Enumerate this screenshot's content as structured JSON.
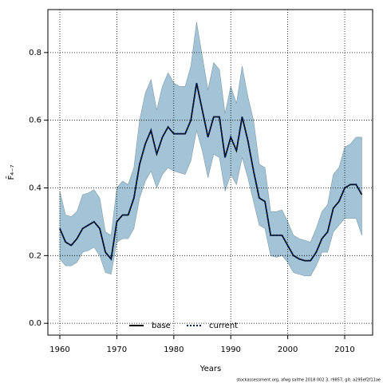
{
  "chart_data": {
    "type": "line",
    "xlabel": "Years",
    "ylabel": "F̄₄₋₇",
    "footnote": "stockassessment.org, afwg saithe 2018 002 3, r9857, git: a295ef2f11ae",
    "x": [
      1960,
      1961,
      1962,
      1963,
      1964,
      1965,
      1966,
      1967,
      1968,
      1969,
      1970,
      1971,
      1972,
      1973,
      1974,
      1975,
      1976,
      1977,
      1978,
      1979,
      1980,
      1981,
      1982,
      1983,
      1984,
      1985,
      1986,
      1987,
      1988,
      1989,
      1990,
      1991,
      1992,
      1993,
      1994,
      1995,
      1996,
      1997,
      1998,
      1999,
      2000,
      2001,
      2002,
      2003,
      2004,
      2005,
      2006,
      2007,
      2008,
      2009,
      2010,
      2011,
      2012,
      2013
    ],
    "band": {
      "color": "#a3c4d6",
      "upper": [
        0.39,
        0.32,
        0.315,
        0.33,
        0.38,
        0.385,
        0.395,
        0.37,
        0.27,
        0.26,
        0.4,
        0.42,
        0.41,
        0.46,
        0.6,
        0.68,
        0.72,
        0.63,
        0.7,
        0.74,
        0.71,
        0.7,
        0.7,
        0.76,
        0.89,
        0.79,
        0.69,
        0.77,
        0.75,
        0.62,
        0.7,
        0.65,
        0.76,
        0.67,
        0.6,
        0.47,
        0.46,
        0.33,
        0.33,
        0.335,
        0.3,
        0.26,
        0.25,
        0.245,
        0.24,
        0.28,
        0.33,
        0.35,
        0.44,
        0.46,
        0.52,
        0.53,
        0.55,
        0.55
      ],
      "lower": [
        0.19,
        0.17,
        0.17,
        0.18,
        0.21,
        0.215,
        0.225,
        0.2,
        0.15,
        0.145,
        0.24,
        0.25,
        0.25,
        0.28,
        0.37,
        0.42,
        0.45,
        0.4,
        0.44,
        0.46,
        0.45,
        0.445,
        0.44,
        0.48,
        0.57,
        0.51,
        0.43,
        0.5,
        0.49,
        0.39,
        0.44,
        0.41,
        0.49,
        0.43,
        0.36,
        0.29,
        0.28,
        0.2,
        0.195,
        0.2,
        0.18,
        0.15,
        0.145,
        0.14,
        0.14,
        0.17,
        0.21,
        0.21,
        0.27,
        0.29,
        0.31,
        0.31,
        0.31,
        0.26
      ]
    },
    "series": [
      {
        "name": "base",
        "color": "#000000",
        "dash": false,
        "values": [
          0.28,
          0.24,
          0.23,
          0.25,
          0.28,
          0.29,
          0.3,
          0.28,
          0.21,
          0.19,
          0.3,
          0.32,
          0.32,
          0.37,
          0.47,
          0.53,
          0.57,
          0.5,
          0.55,
          0.58,
          0.56,
          0.56,
          0.56,
          0.6,
          0.71,
          0.63,
          0.55,
          0.61,
          0.61,
          0.49,
          0.55,
          0.51,
          0.61,
          0.54,
          0.45,
          0.37,
          0.36,
          0.26,
          0.26,
          0.26,
          0.23,
          0.2,
          0.19,
          0.185,
          0.185,
          0.21,
          0.25,
          0.27,
          0.34,
          0.36,
          0.4,
          0.41,
          0.41,
          0.38
        ]
      },
      {
        "name": "current",
        "color": "#00205b",
        "dash": true,
        "values": [
          0.28,
          0.24,
          0.23,
          0.25,
          0.28,
          0.29,
          0.3,
          0.28,
          0.21,
          0.19,
          0.3,
          0.32,
          0.32,
          0.37,
          0.47,
          0.53,
          0.57,
          0.5,
          0.55,
          0.58,
          0.56,
          0.56,
          0.56,
          0.6,
          0.71,
          0.63,
          0.55,
          0.61,
          0.61,
          0.49,
          0.55,
          0.51,
          0.61,
          0.54,
          0.45,
          0.37,
          0.36,
          0.26,
          0.26,
          0.26,
          0.23,
          0.2,
          0.19,
          0.185,
          0.185,
          0.21,
          0.25,
          0.27,
          0.34,
          0.36,
          0.4,
          0.41,
          0.41,
          0.38
        ]
      }
    ],
    "xlim": [
      1957.9,
      2014.9
    ],
    "ylim": [
      -0.035,
      0.927
    ],
    "xticks": [
      1960,
      1970,
      1980,
      1990,
      2000,
      2010
    ],
    "yticks": [
      {
        "value": 0,
        "label": "0.0"
      },
      0.2,
      0.4,
      0.6,
      0.8
    ],
    "grid": true,
    "legend": "bottom"
  }
}
